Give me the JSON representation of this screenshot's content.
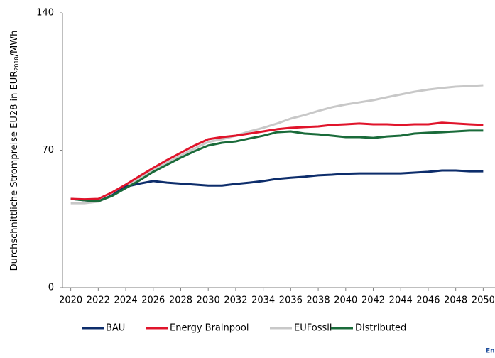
{
  "chart_data": {
    "type": "line",
    "y_label": [
      "Durchschnittliche Strompreise EU28 in EUR",
      "2018",
      "/MWh"
    ],
    "x": [
      2020,
      2021,
      2022,
      2023,
      2024,
      2025,
      2026,
      2027,
      2028,
      2029,
      2030,
      2031,
      2032,
      2033,
      2034,
      2035,
      2036,
      2037,
      2038,
      2039,
      2040,
      2041,
      2042,
      2043,
      2044,
      2045,
      2046,
      2047,
      2048,
      2049,
      2050
    ],
    "xlim": [
      2019.4,
      2050.6
    ],
    "xticks": [
      2020,
      2022,
      2024,
      2026,
      2028,
      2030,
      2032,
      2034,
      2036,
      2038,
      2040,
      2042,
      2044,
      2046,
      2048,
      2050
    ],
    "ylim": [
      0,
      140
    ],
    "yticks": [
      0,
      70,
      140
    ],
    "grid": false,
    "legend": "bottom",
    "series": [
      {
        "name": "BAU",
        "color": "#0d2d6b",
        "values": [
          45.2,
          44.5,
          44,
          47,
          51.4,
          53,
          54.3,
          53.5,
          53,
          52.5,
          52,
          52,
          52.8,
          53.5,
          54.3,
          55.4,
          56,
          56.5,
          57.2,
          57.5,
          58,
          58.2,
          58.2,
          58.2,
          58.2,
          58.6,
          59,
          59.7,
          59.7,
          59.3,
          59.3
        ]
      },
      {
        "name": "Energy Brainpool",
        "color": "#e0142b",
        "values": [
          45.2,
          45,
          45.2,
          48.5,
          52.5,
          56.8,
          61,
          65,
          68.7,
          72.4,
          75.6,
          76.7,
          77.4,
          78.5,
          79.6,
          80.7,
          81.4,
          81.8,
          82.1,
          82.9,
          83.2,
          83.6,
          83.2,
          83.2,
          82.9,
          83.2,
          83.2,
          84,
          83.6,
          83.2,
          82.9
        ]
      },
      {
        "name": "EUFossil",
        "color": "#c8c8c8",
        "values": [
          43,
          43,
          43.8,
          47,
          51.4,
          55.7,
          59.7,
          63.7,
          67.3,
          70.9,
          74.2,
          75.6,
          77.4,
          79.6,
          81.4,
          83.6,
          86.1,
          87.9,
          90,
          91.9,
          93.3,
          94.4,
          95.5,
          97,
          98.4,
          99.8,
          100.9,
          101.7,
          102.4,
          102.7,
          103.1
        ]
      },
      {
        "name": "Distributed",
        "color": "#1a6b3a",
        "values": [
          45.2,
          44.5,
          44,
          46.7,
          50.7,
          54.6,
          59,
          62.6,
          66.2,
          69.5,
          72.4,
          73.8,
          74.5,
          76,
          77.4,
          79.2,
          79.6,
          78.5,
          78.1,
          77.4,
          76.7,
          76.7,
          76.3,
          77,
          77.4,
          78.5,
          78.9,
          79.2,
          79.6,
          80,
          80
        ]
      }
    ],
    "source_fragment": "En"
  }
}
